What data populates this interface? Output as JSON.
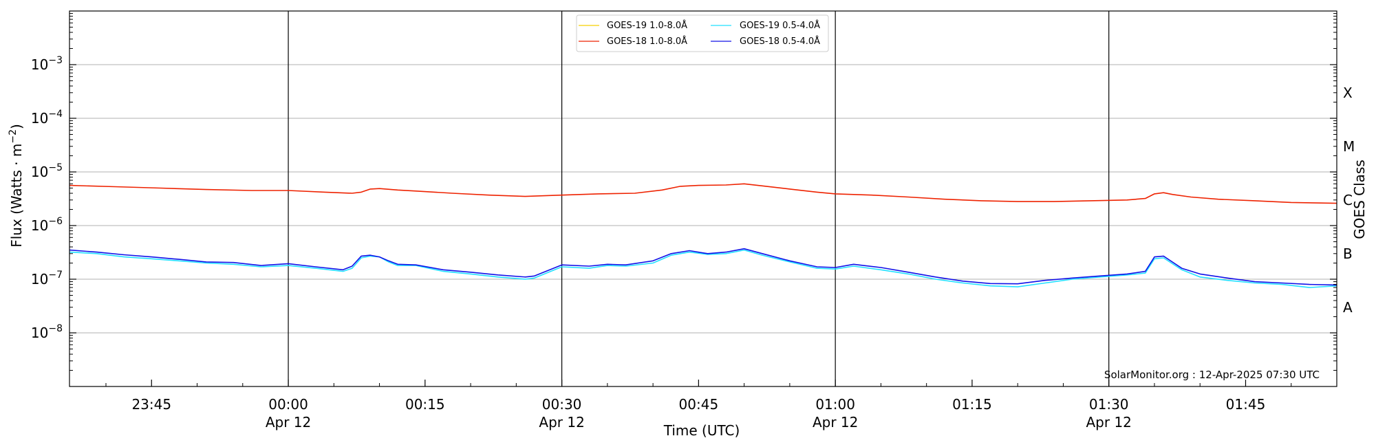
{
  "chart_data": {
    "type": "line",
    "xlabel": "Time (UTC)",
    "ylabel_main": "Flux (Watts · m",
    "ylabel_exp": "−2",
    "ylabel_close": ")",
    "y2label": "GOES Class",
    "y_scale": "log",
    "ylim": [
      1e-09,
      0.01
    ],
    "xlim": [
      "2025-04-11 23:36",
      "2025-04-12 01:55"
    ],
    "grid": "horizontal at decades",
    "legend_position": "top-center",
    "credit": "SolarMonitor.org : 12-Apr-2025 07:30 UTC",
    "y_ticks": [
      {
        "value": 1e-08,
        "base": "10",
        "exp": "−8"
      },
      {
        "value": 1e-07,
        "base": "10",
        "exp": "−7"
      },
      {
        "value": 1e-06,
        "base": "10",
        "exp": "−6"
      },
      {
        "value": 1e-05,
        "base": "10",
        "exp": "−5"
      },
      {
        "value": 0.0001,
        "base": "10",
        "exp": "−4"
      },
      {
        "value": 0.001,
        "base": "10",
        "exp": "−3"
      }
    ],
    "class_labels": [
      {
        "label": "A",
        "value": 3e-08
      },
      {
        "label": "B",
        "value": 3e-07
      },
      {
        "label": "C",
        "value": 3e-06
      },
      {
        "label": "M",
        "value": 3e-05
      },
      {
        "label": "X",
        "value": 0.0003
      }
    ],
    "x_ticks": [
      {
        "minute": 9,
        "label": "23:45",
        "sub": ""
      },
      {
        "minute": 24,
        "label": "00:00",
        "sub": "Apr 12"
      },
      {
        "minute": 39,
        "label": "00:15",
        "sub": ""
      },
      {
        "minute": 54,
        "label": "00:30",
        "sub": "Apr 12"
      },
      {
        "minute": 69,
        "label": "00:45",
        "sub": ""
      },
      {
        "minute": 84,
        "label": "01:00",
        "sub": "Apr 12"
      },
      {
        "minute": 99,
        "label": "01:15",
        "sub": ""
      },
      {
        "minute": 114,
        "label": "01:30",
        "sub": "Apr 12"
      },
      {
        "minute": 129,
        "label": "01:45",
        "sub": ""
      }
    ],
    "vlines_minutes": [
      24,
      54,
      84,
      114
    ],
    "x_minutes_note": "minutes after 2025-04-11 23:36 UTC",
    "series": [
      {
        "name": "GOES-19 1.0-8.0Å",
        "color": "#f5d000",
        "points": []
      },
      {
        "name": "GOES-18 1.0-8.0Å",
        "color": "#ee2200",
        "points": [
          [
            0,
            5.6e-06
          ],
          [
            5,
            5.3e-06
          ],
          [
            10,
            5e-06
          ],
          [
            15,
            4.7e-06
          ],
          [
            20,
            4.5e-06
          ],
          [
            24,
            4.5e-06
          ],
          [
            28,
            4.2e-06
          ],
          [
            31,
            4e-06
          ],
          [
            32,
            4.2e-06
          ],
          [
            33,
            4.8e-06
          ],
          [
            34,
            4.9e-06
          ],
          [
            36,
            4.6e-06
          ],
          [
            38,
            4.4e-06
          ],
          [
            42,
            4e-06
          ],
          [
            46,
            3.7e-06
          ],
          [
            50,
            3.5e-06
          ],
          [
            54,
            3.7e-06
          ],
          [
            58,
            3.9e-06
          ],
          [
            62,
            4e-06
          ],
          [
            65,
            4.6e-06
          ],
          [
            67,
            5.4e-06
          ],
          [
            69,
            5.6e-06
          ],
          [
            72,
            5.7e-06
          ],
          [
            74,
            6e-06
          ],
          [
            76,
            5.5e-06
          ],
          [
            79,
            4.8e-06
          ],
          [
            82,
            4.2e-06
          ],
          [
            84,
            3.9e-06
          ],
          [
            88,
            3.7e-06
          ],
          [
            92,
            3.4e-06
          ],
          [
            96,
            3.1e-06
          ],
          [
            100,
            2.9e-06
          ],
          [
            104,
            2.8e-06
          ],
          [
            108,
            2.8e-06
          ],
          [
            112,
            2.9e-06
          ],
          [
            116,
            3e-06
          ],
          [
            118,
            3.2e-06
          ],
          [
            119,
            3.9e-06
          ],
          [
            120,
            4.1e-06
          ],
          [
            121,
            3.8e-06
          ],
          [
            123,
            3.4e-06
          ],
          [
            126,
            3.1e-06
          ],
          [
            130,
            2.9e-06
          ],
          [
            134,
            2.7e-06
          ],
          [
            139,
            2.6e-06
          ]
        ]
      },
      {
        "name": "GOES-19 0.5-4.0Å",
        "color": "#22e0ff",
        "points": [
          [
            0,
            3.2e-07
          ],
          [
            3,
            3e-07
          ],
          [
            6,
            2.6e-07
          ],
          [
            9,
            2.4e-07
          ],
          [
            12,
            2.2e-07
          ],
          [
            15,
            2e-07
          ],
          [
            18,
            1.9e-07
          ],
          [
            21,
            1.7e-07
          ],
          [
            24,
            1.8e-07
          ],
          [
            27,
            1.6e-07
          ],
          [
            30,
            1.4e-07
          ],
          [
            31,
            1.6e-07
          ],
          [
            32,
            2.5e-07
          ],
          [
            33,
            2.7e-07
          ],
          [
            34,
            2.6e-07
          ],
          [
            35,
            2.1e-07
          ],
          [
            36,
            1.8e-07
          ],
          [
            38,
            1.8e-07
          ],
          [
            41,
            1.4e-07
          ],
          [
            44,
            1.25e-07
          ],
          [
            47,
            1.1e-07
          ],
          [
            50,
            1e-07
          ],
          [
            51,
            1.05e-07
          ],
          [
            54,
            1.7e-07
          ],
          [
            57,
            1.6e-07
          ],
          [
            59,
            1.8e-07
          ],
          [
            61,
            1.75e-07
          ],
          [
            64,
            2e-07
          ],
          [
            66,
            2.8e-07
          ],
          [
            68,
            3.2e-07
          ],
          [
            70,
            2.9e-07
          ],
          [
            72,
            3e-07
          ],
          [
            74,
            3.5e-07
          ],
          [
            76,
            2.8e-07
          ],
          [
            79,
            2.1e-07
          ],
          [
            82,
            1.6e-07
          ],
          [
            84,
            1.55e-07
          ],
          [
            86,
            1.75e-07
          ],
          [
            89,
            1.5e-07
          ],
          [
            92,
            1.25e-07
          ],
          [
            95,
            1e-07
          ],
          [
            98,
            8.5e-08
          ],
          [
            101,
            7.5e-08
          ],
          [
            104,
            7.2e-08
          ],
          [
            107,
            8.5e-08
          ],
          [
            110,
            1e-07
          ],
          [
            113,
            1.1e-07
          ],
          [
            116,
            1.2e-07
          ],
          [
            118,
            1.3e-07
          ],
          [
            119,
            2.4e-07
          ],
          [
            120,
            2.5e-07
          ],
          [
            122,
            1.5e-07
          ],
          [
            124,
            1.1e-07
          ],
          [
            127,
            9.5e-08
          ],
          [
            130,
            8.5e-08
          ],
          [
            133,
            8e-08
          ],
          [
            136,
            7e-08
          ],
          [
            139,
            7.5e-08
          ]
        ]
      },
      {
        "name": "GOES-18 0.5-4.0Å",
        "color": "#1010e8",
        "points": [
          [
            0,
            3.5e-07
          ],
          [
            3,
            3.2e-07
          ],
          [
            6,
            2.85e-07
          ],
          [
            9,
            2.6e-07
          ],
          [
            12,
            2.35e-07
          ],
          [
            15,
            2.1e-07
          ],
          [
            18,
            2.05e-07
          ],
          [
            21,
            1.8e-07
          ],
          [
            24,
            1.95e-07
          ],
          [
            27,
            1.7e-07
          ],
          [
            30,
            1.5e-07
          ],
          [
            31,
            1.75e-07
          ],
          [
            32,
            2.7e-07
          ],
          [
            33,
            2.8e-07
          ],
          [
            34,
            2.6e-07
          ],
          [
            35,
            2.2e-07
          ],
          [
            36,
            1.9e-07
          ],
          [
            38,
            1.85e-07
          ],
          [
            41,
            1.5e-07
          ],
          [
            44,
            1.35e-07
          ],
          [
            47,
            1.2e-07
          ],
          [
            50,
            1.1e-07
          ],
          [
            51,
            1.15e-07
          ],
          [
            54,
            1.85e-07
          ],
          [
            57,
            1.75e-07
          ],
          [
            59,
            1.9e-07
          ],
          [
            61,
            1.85e-07
          ],
          [
            64,
            2.2e-07
          ],
          [
            66,
            3e-07
          ],
          [
            68,
            3.4e-07
          ],
          [
            70,
            3e-07
          ],
          [
            72,
            3.2e-07
          ],
          [
            74,
            3.7e-07
          ],
          [
            76,
            3e-07
          ],
          [
            79,
            2.2e-07
          ],
          [
            82,
            1.7e-07
          ],
          [
            84,
            1.65e-07
          ],
          [
            86,
            1.9e-07
          ],
          [
            89,
            1.65e-07
          ],
          [
            92,
            1.35e-07
          ],
          [
            95,
            1.1e-07
          ],
          [
            98,
            9.2e-08
          ],
          [
            101,
            8.3e-08
          ],
          [
            104,
            8.2e-08
          ],
          [
            107,
            9.5e-08
          ],
          [
            110,
            1.05e-07
          ],
          [
            113,
            1.15e-07
          ],
          [
            116,
            1.25e-07
          ],
          [
            118,
            1.4e-07
          ],
          [
            119,
            2.6e-07
          ],
          [
            120,
            2.7e-07
          ],
          [
            122,
            1.6e-07
          ],
          [
            124,
            1.25e-07
          ],
          [
            127,
            1.05e-07
          ],
          [
            130,
            9e-08
          ],
          [
            133,
            8.5e-08
          ],
          [
            136,
            8e-08
          ],
          [
            139,
            7.8e-08
          ]
        ]
      }
    ]
  }
}
